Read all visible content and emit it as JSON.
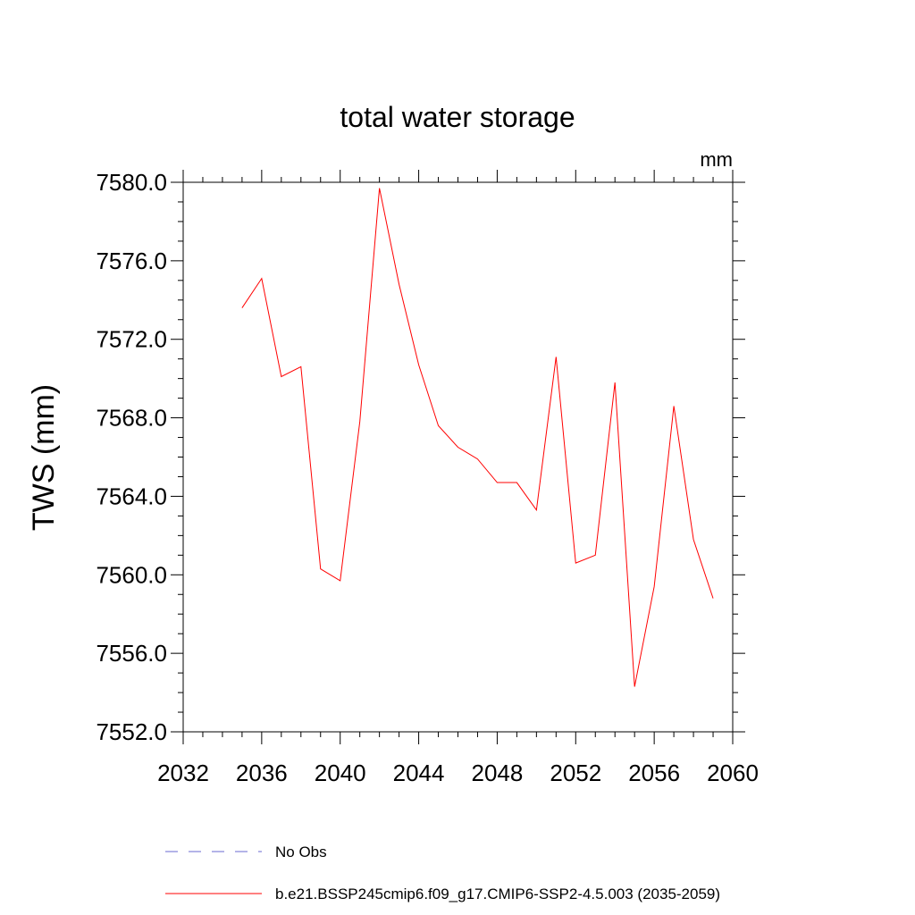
{
  "chart_data": {
    "type": "line",
    "title": "total water storage",
    "units": "mm",
    "ylabel": "TWS  (mm)",
    "xlabel": "",
    "xlim": [
      2032,
      2060
    ],
    "ylim": [
      7552.0,
      7580.0
    ],
    "x_ticks": [
      2032,
      2036,
      2040,
      2044,
      2048,
      2052,
      2056,
      2060
    ],
    "x_tick_labels": [
      "2032",
      "2036",
      "2040",
      "2044",
      "2048",
      "2052",
      "2056",
      "2060"
    ],
    "y_ticks": [
      7552.0,
      7556.0,
      7560.0,
      7564.0,
      7568.0,
      7572.0,
      7576.0,
      7580.0
    ],
    "y_tick_labels": [
      "7552.0",
      "7556.0",
      "7560.0",
      "7564.0",
      "7568.0",
      "7572.0",
      "7576.0",
      "7580.0"
    ],
    "grid": false,
    "legend_position": "bottom",
    "series": [
      {
        "name": "b.e21.BSSP245cmip6.f09_g17.CMIP6-SSP2-4.5.003 (2035-2059)",
        "color": "#ff0000",
        "style": "solid",
        "x": [
          2035,
          2036,
          2037,
          2038,
          2039,
          2040,
          2041,
          2042,
          2043,
          2044,
          2045,
          2046,
          2047,
          2048,
          2049,
          2050,
          2051,
          2052,
          2053,
          2054,
          2055,
          2056,
          2057,
          2058,
          2059
        ],
        "values": [
          7573.6,
          7575.1,
          7570.1,
          7570.6,
          7560.3,
          7559.7,
          7567.8,
          7579.7,
          7574.8,
          7570.7,
          7567.6,
          7566.5,
          7565.9,
          7564.7,
          7564.7,
          7563.3,
          7571.1,
          7560.6,
          7561.0,
          7569.8,
          7554.3,
          7559.4,
          7568.6,
          7561.8,
          7558.8
        ]
      },
      {
        "name": "No Obs",
        "color": "#6a6ad0",
        "style": "dashed",
        "x": [],
        "values": []
      }
    ]
  }
}
